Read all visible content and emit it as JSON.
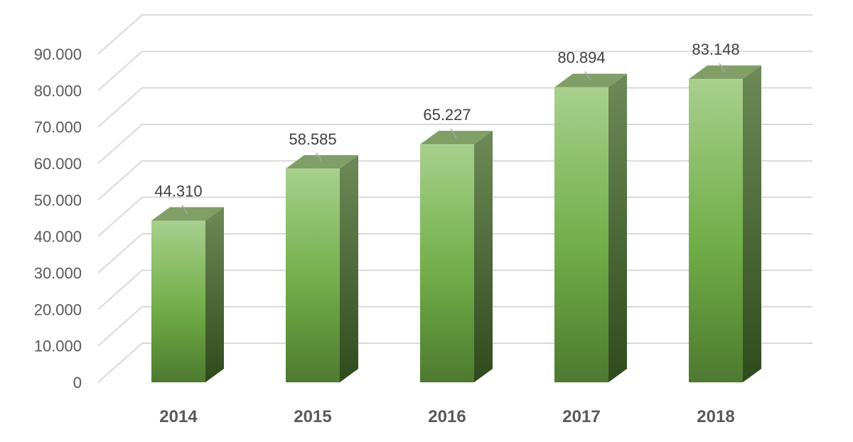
{
  "chart_data": {
    "type": "bar",
    "style": "3d-column",
    "categories": [
      "2014",
      "2015",
      "2016",
      "2017",
      "2018"
    ],
    "values": [
      44310,
      58585,
      65227,
      80894,
      83148
    ],
    "data_labels": [
      "44.310",
      "58.585",
      "65.227",
      "80.894",
      "83.148"
    ],
    "ylim": [
      0,
      90000
    ],
    "yticks": [
      0,
      10000,
      20000,
      30000,
      40000,
      50000,
      60000,
      70000,
      80000,
      90000
    ],
    "ytick_labels": [
      "0",
      "10.000",
      "20.000",
      "30.000",
      "40.000",
      "50.000",
      "60.000",
      "70.000",
      "80.000",
      "90.000"
    ],
    "title": "",
    "xlabel": "",
    "ylabel": "",
    "grid": true,
    "legend": "none",
    "colors": {
      "bar_front_top": "#a8d08d",
      "bar_front_mid": "#70ad47",
      "bar_front_bottom": "#4e7a30",
      "bar_side_top": "#6d8a58",
      "bar_side_bottom": "#2f4a1c",
      "bar_top_face": "#7f9f66",
      "grid": "#d9d9d9",
      "tick_text": "#595959",
      "label_text": "#404040"
    }
  }
}
